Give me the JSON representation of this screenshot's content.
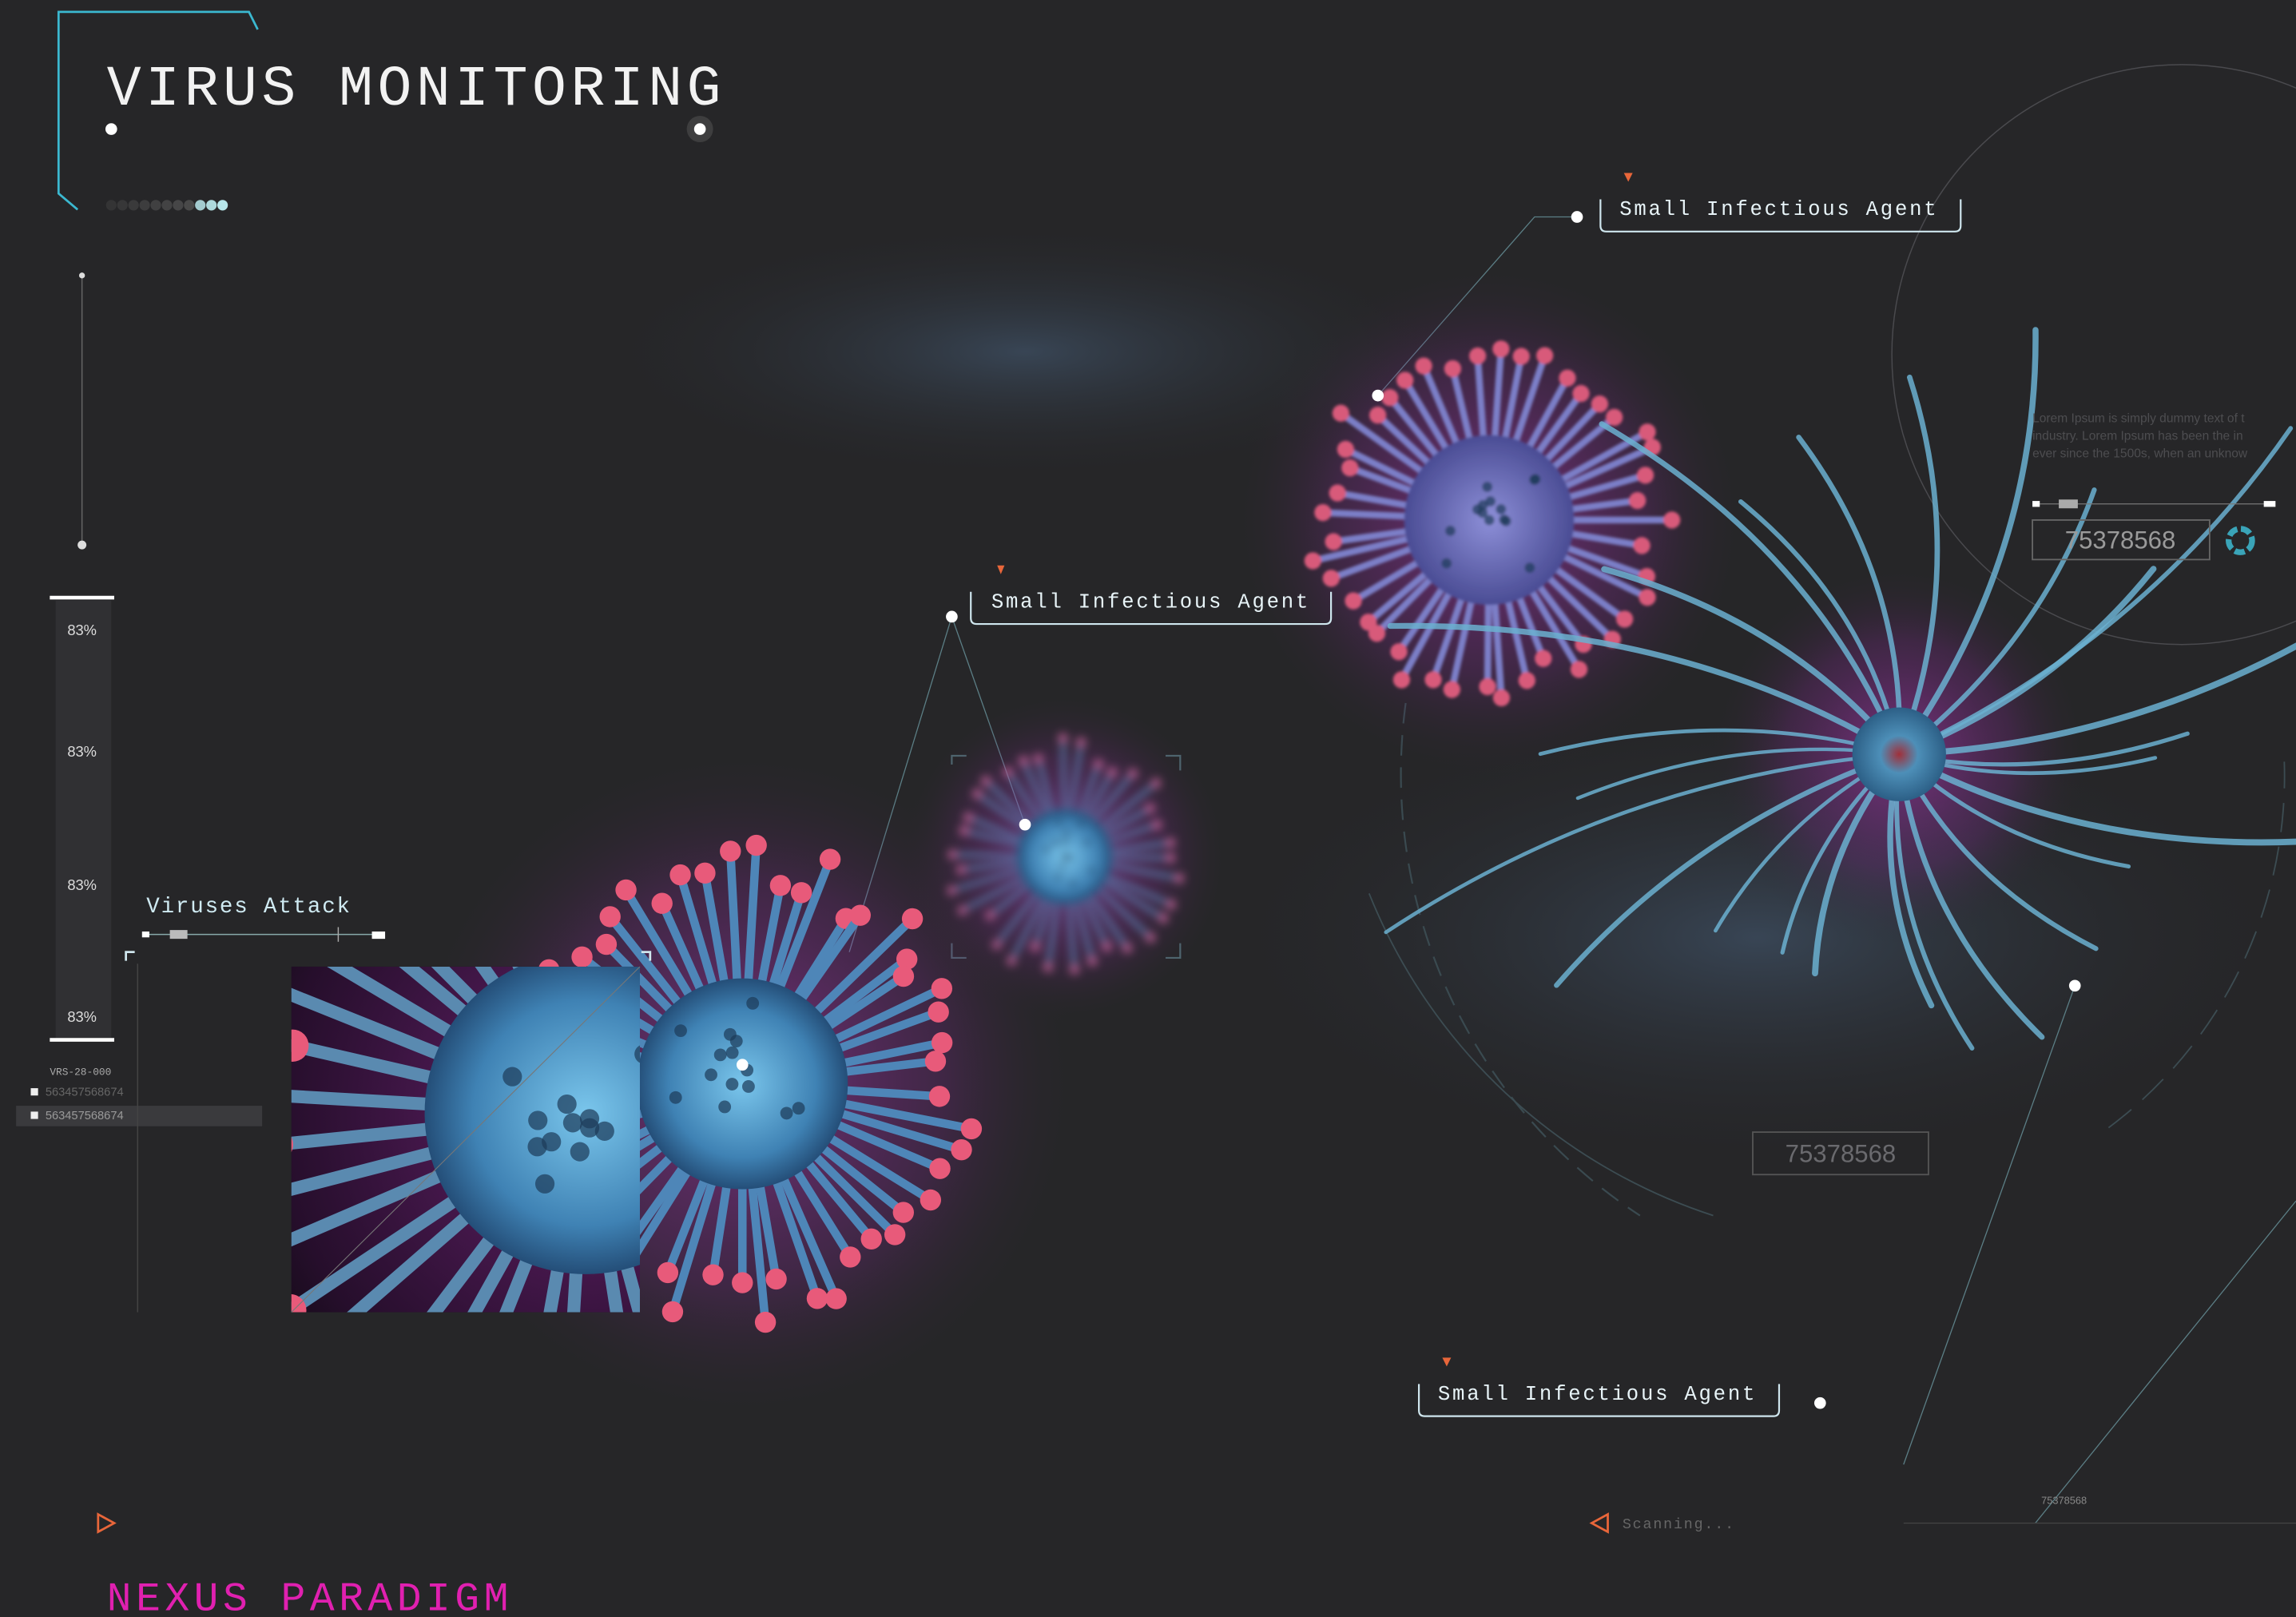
{
  "header": {
    "title": "VIRUS MONITORING"
  },
  "gauge": {
    "levels": [
      "83%",
      "83%",
      "83%",
      "83%"
    ],
    "code": "VRS-28-000",
    "ids": [
      "563457568674",
      "563457568674"
    ]
  },
  "panel": {
    "title": "Viruses Attack"
  },
  "callouts": [
    "Small Infectious Agent",
    "Small Infectious Agent",
    "Small Infectious Agent"
  ],
  "info": {
    "lines": [
      "Lorem Ipsum is simply dummy text of t",
      "industry. Lorem Ipsum has been the in",
      "ever since the 1500s, when an unknow"
    ]
  },
  "readouts": [
    "75378568",
    "75378568",
    "75378568"
  ],
  "status": "Scanning...",
  "footer": {
    "brand": "NEXUS PARADIGM"
  }
}
